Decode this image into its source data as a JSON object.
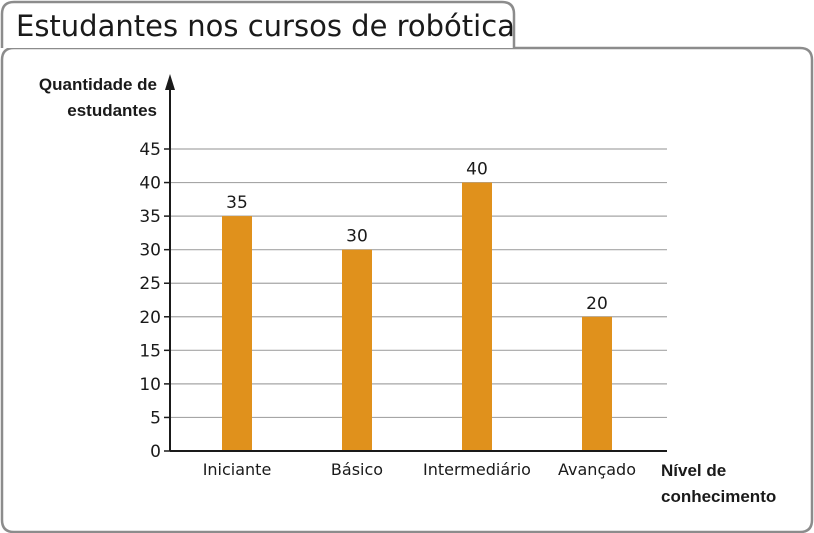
{
  "chart_data": {
    "type": "bar",
    "title": "Estudantes nos cursos de robótica",
    "ylabel_lines": [
      "Quantidade de",
      "estudantes"
    ],
    "xlabel_lines": [
      "Nível de",
      "conhecimento"
    ],
    "categories": [
      "Iniciante",
      "Básico",
      "Intermediário",
      "Avançado"
    ],
    "values": [
      35,
      30,
      40,
      20
    ],
    "data_labels": [
      "35",
      "30",
      "40",
      "20"
    ],
    "ylim": [
      0,
      45
    ],
    "yticks": [
      0,
      5,
      10,
      15,
      20,
      25,
      30,
      35,
      40,
      45
    ],
    "grid": true,
    "bar_color": "#e0911c"
  }
}
